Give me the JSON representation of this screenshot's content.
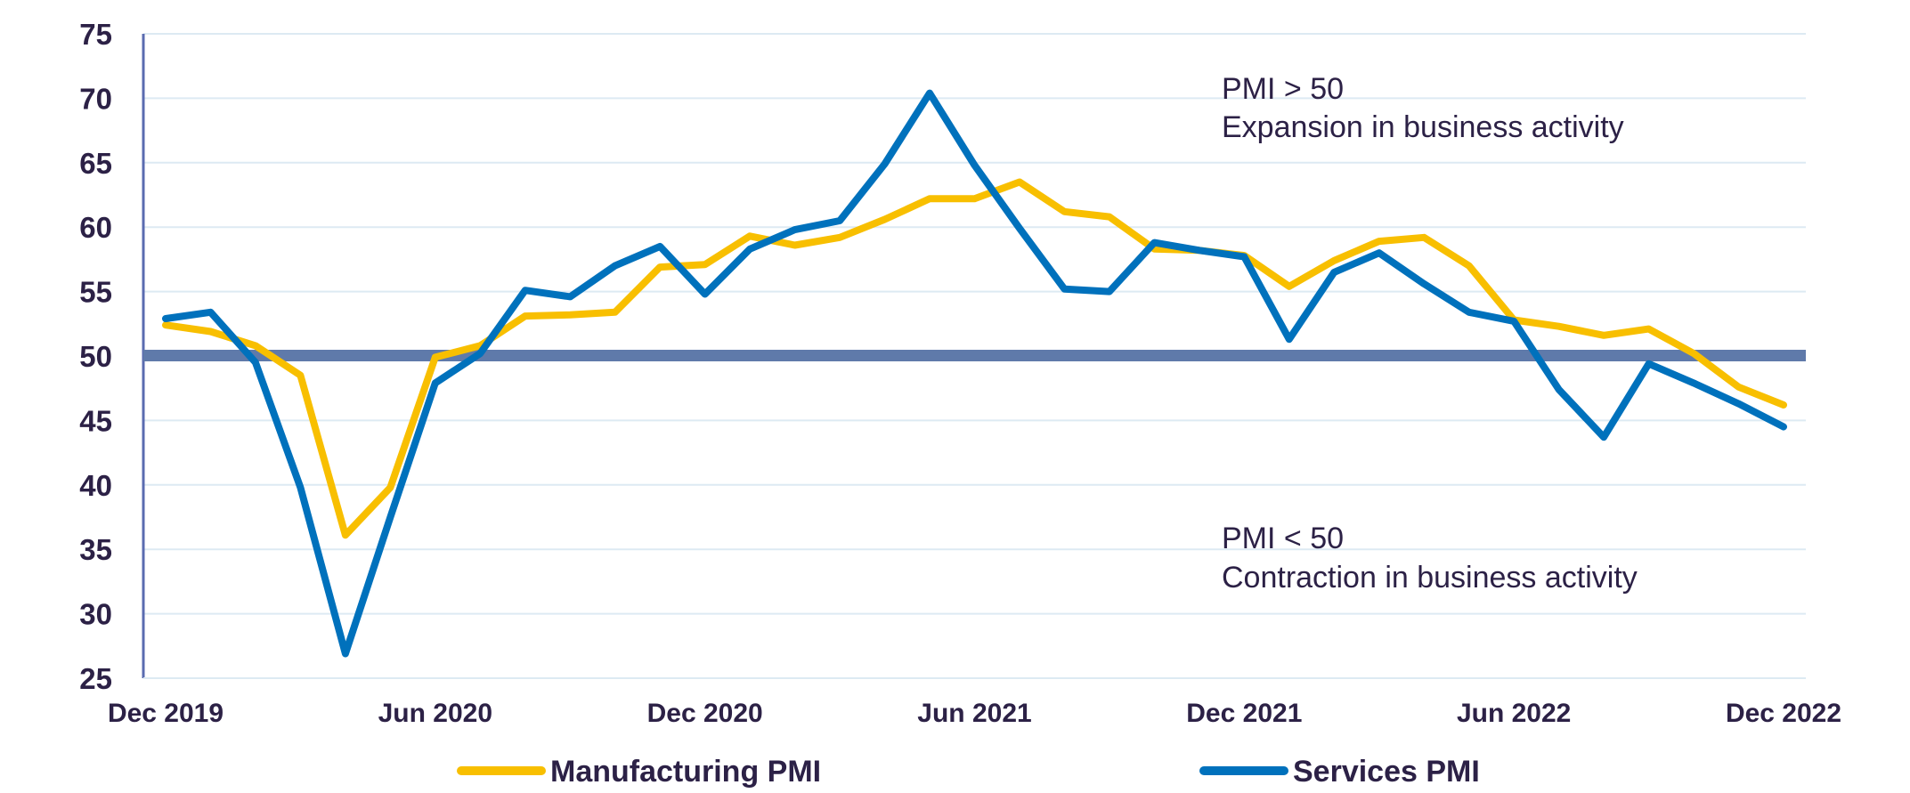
{
  "chart_data": {
    "type": "line",
    "ylim": [
      25,
      75
    ],
    "yticks": [
      25,
      30,
      35,
      40,
      45,
      50,
      55,
      60,
      65,
      70,
      75
    ],
    "x_months": [
      "Dec 2019",
      "Jan 2020",
      "Feb 2020",
      "Mar 2020",
      "Apr 2020",
      "May 2020",
      "Jun 2020",
      "Jul 2020",
      "Aug 2020",
      "Sep 2020",
      "Oct 2020",
      "Nov 2020",
      "Dec 2020",
      "Jan 2021",
      "Feb 2021",
      "Mar 2021",
      "Apr 2021",
      "May 2021",
      "Jun 2021",
      "Jul 2021",
      "Aug 2021",
      "Sep 2021",
      "Oct 2021",
      "Nov 2021",
      "Dec 2021",
      "Jan 2022",
      "Feb 2022",
      "Mar 2022",
      "Apr 2022",
      "May 2022",
      "Jun 2022",
      "Jul 2022",
      "Aug 2022",
      "Sep 2022",
      "Oct 2022",
      "Nov 2022",
      "Dec 2022"
    ],
    "x_tick_labels": [
      "Dec 2019",
      "Jun 2020",
      "Dec 2020",
      "Jun 2021",
      "Dec 2021",
      "Jun 2022",
      "Dec 2022"
    ],
    "x_tick_indices": [
      0,
      6,
      12,
      18,
      24,
      30,
      36
    ],
    "threshold": 50,
    "grid": true,
    "legend_position": "bottom",
    "series": [
      {
        "name": "Manufacturing PMI",
        "color": "#f8bf00",
        "values": [
          52.4,
          51.9,
          50.8,
          48.5,
          36.1,
          39.8,
          49.9,
          50.8,
          53.1,
          53.2,
          53.4,
          56.9,
          57.1,
          59.3,
          58.6,
          59.2,
          60.6,
          62.2,
          62.2,
          63.5,
          61.2,
          60.8,
          58.3,
          58.2,
          57.8,
          55.4,
          57.4,
          58.9,
          59.2,
          57.0,
          52.8,
          52.3,
          51.6,
          52.1,
          50.2,
          47.6,
          46.2
        ]
      },
      {
        "name": "Services PMI",
        "color": "#0071bc",
        "values": [
          52.9,
          53.4,
          49.5,
          39.8,
          26.9,
          37.5,
          47.9,
          50.2,
          55.1,
          54.6,
          57.0,
          58.5,
          54.8,
          58.3,
          59.8,
          60.5,
          64.9,
          70.4,
          64.8,
          59.9,
          55.2,
          55.0,
          58.8,
          58.2,
          57.7,
          51.3,
          56.5,
          58.0,
          55.6,
          53.4,
          52.7,
          47.4,
          43.7,
          49.4,
          47.9,
          46.3,
          44.5
        ]
      }
    ],
    "annotations": [
      {
        "id": "above",
        "line1": "PMI > 50",
        "line2": "Expansion in business activity"
      },
      {
        "id": "below",
        "line1": "PMI < 50",
        "line2": "Contraction in business activity"
      }
    ],
    "colors": {
      "threshold_line": "#5f7aaa",
      "axis": "#5a6bb0",
      "grid": "#ddeaf3",
      "text": "#2c2146"
    }
  }
}
